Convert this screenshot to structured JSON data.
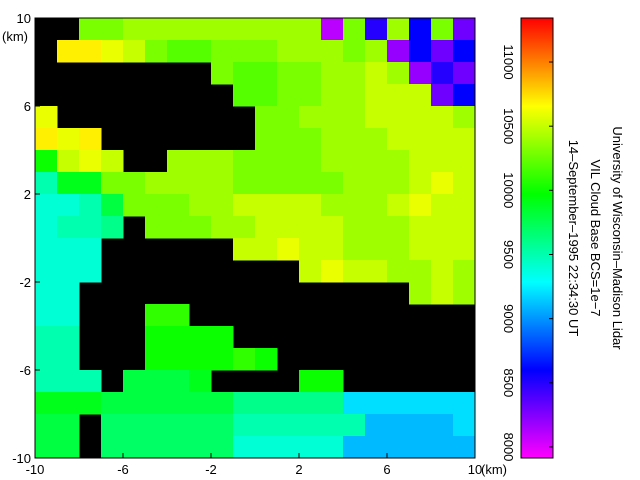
{
  "chart_data": {
    "type": "heatmap",
    "title_lines": [
      "University of Wisconsin–Madison Lidar",
      "VIL Cloud Base BCS=1e−7",
      "14–September–1995 22:34:30 UT"
    ],
    "xlabel": "(km)",
    "ylabel": "(km)",
    "xlim": [
      -10,
      10
    ],
    "ylim": [
      -10,
      10
    ],
    "xticks": [
      -10,
      -6,
      -2,
      2,
      6,
      10
    ],
    "yticks": [
      -10,
      -6,
      -2,
      2,
      6,
      10
    ],
    "x": [
      -9.5,
      -8.5,
      -7.5,
      -6.5,
      -5.5,
      -4.5,
      -3.5,
      -2.5,
      -1.5,
      -0.5,
      0.5,
      1.5,
      2.5,
      3.5,
      4.5,
      5.5,
      6.5,
      7.5,
      8.5,
      9.5
    ],
    "y": [
      9.5,
      8.5,
      7.5,
      6.5,
      5.5,
      4.5,
      3.5,
      2.5,
      1.5,
      0.5,
      -0.5,
      -1.5,
      -2.5,
      -3.5,
      -4.5,
      -5.5,
      -6.5,
      -7.5,
      -8.5,
      -9.5
    ],
    "z": [
      [
        null,
        null,
        10300,
        10300,
        10400,
        10400,
        10400,
        10400,
        10400,
        10400,
        10400,
        10400,
        10400,
        8100,
        10300,
        8500,
        10400,
        8600,
        10300,
        8300
      ],
      [
        null,
        10700,
        10700,
        10600,
        10500,
        10300,
        10200,
        10200,
        10300,
        10300,
        10300,
        10400,
        10400,
        10400,
        10300,
        10400,
        8200,
        8600,
        8300,
        8600
      ],
      [
        null,
        null,
        null,
        null,
        null,
        null,
        null,
        null,
        10300,
        10200,
        10200,
        10300,
        10300,
        10400,
        10400,
        10500,
        10400,
        8200,
        8500,
        8300
      ],
      [
        null,
        null,
        null,
        null,
        null,
        null,
        null,
        null,
        null,
        10200,
        10200,
        10300,
        10300,
        10400,
        10400,
        10500,
        10500,
        10500,
        8300,
        8600
      ],
      [
        10600,
        null,
        null,
        null,
        null,
        null,
        null,
        null,
        null,
        null,
        10300,
        10300,
        10400,
        10400,
        10400,
        10500,
        10500,
        10500,
        10500,
        10400
      ],
      [
        10700,
        10600,
        10700,
        null,
        null,
        null,
        null,
        null,
        null,
        null,
        10300,
        10300,
        10300,
        10400,
        10400,
        10400,
        10500,
        10500,
        10500,
        10500
      ],
      [
        10000,
        10500,
        10600,
        10500,
        null,
        null,
        10400,
        10400,
        10400,
        10300,
        10300,
        10300,
        10300,
        10400,
        10400,
        10400,
        10400,
        10500,
        10500,
        10500
      ],
      [
        9500,
        9900,
        9900,
        10300,
        10300,
        10400,
        10400,
        10400,
        10400,
        10300,
        10300,
        10300,
        10300,
        10300,
        10400,
        10400,
        10400,
        10500,
        10600,
        10500
      ],
      [
        9400,
        9400,
        9500,
        9800,
        10300,
        10300,
        10300,
        10400,
        10400,
        10500,
        10500,
        10500,
        10500,
        10400,
        10400,
        10400,
        10500,
        10600,
        10500,
        10500
      ],
      [
        9400,
        9500,
        9500,
        9600,
        null,
        10300,
        10300,
        10300,
        10400,
        10400,
        10500,
        10500,
        10500,
        10500,
        10400,
        10400,
        10400,
        10500,
        10500,
        10500
      ],
      [
        9400,
        9400,
        9400,
        null,
        null,
        null,
        null,
        null,
        null,
        10500,
        10500,
        10600,
        10500,
        10500,
        10400,
        10400,
        10400,
        10500,
        10500,
        10500
      ],
      [
        9400,
        9400,
        9400,
        null,
        null,
        null,
        null,
        null,
        null,
        null,
        null,
        null,
        10500,
        10600,
        10500,
        10500,
        10400,
        10400,
        10500,
        10400
      ],
      [
        9400,
        9400,
        null,
        null,
        null,
        null,
        null,
        null,
        null,
        null,
        null,
        null,
        null,
        null,
        null,
        null,
        null,
        10400,
        10500,
        10400
      ],
      [
        9400,
        9400,
        null,
        null,
        null,
        10100,
        10100,
        null,
        null,
        null,
        null,
        null,
        null,
        null,
        null,
        null,
        null,
        null,
        null,
        null
      ],
      [
        9500,
        9500,
        null,
        null,
        null,
        10000,
        10000,
        10000,
        10000,
        null,
        null,
        null,
        null,
        null,
        null,
        null,
        null,
        null,
        null,
        null
      ],
      [
        9500,
        9500,
        null,
        null,
        null,
        10000,
        10000,
        10000,
        10000,
        10100,
        10000,
        null,
        null,
        null,
        null,
        null,
        null,
        null,
        null,
        null
      ],
      [
        9500,
        9500,
        9500,
        null,
        9800,
        9800,
        9800,
        9900,
        null,
        null,
        null,
        null,
        10000,
        10000,
        null,
        null,
        null,
        null,
        null,
        null
      ],
      [
        9900,
        9900,
        9900,
        9800,
        9800,
        9800,
        9800,
        9800,
        9800,
        9600,
        9600,
        9600,
        9600,
        9600,
        9200,
        9200,
        9200,
        9200,
        9200,
        9200
      ],
      [
        9800,
        9800,
        null,
        9700,
        9700,
        9700,
        9700,
        9700,
        9700,
        9500,
        9500,
        9500,
        9500,
        9500,
        9500,
        9100,
        9100,
        9100,
        9100,
        9200
      ],
      [
        9800,
        9800,
        null,
        9700,
        9700,
        9700,
        9700,
        9700,
        9700,
        9400,
        9400,
        9400,
        9400,
        9400,
        9100,
        9100,
        9100,
        9100,
        9100,
        9100
      ]
    ],
    "clim": [
      7914,
      11343
    ],
    "cticks": [
      8000,
      8500,
      9000,
      9500,
      10000,
      10500,
      11000
    ],
    "colormap": [
      "#ff00ff",
      "#0000ff",
      "#00ffff",
      "#00ff00",
      "#ffff00",
      "#ff0000"
    ],
    "nan_color": "#000000"
  }
}
